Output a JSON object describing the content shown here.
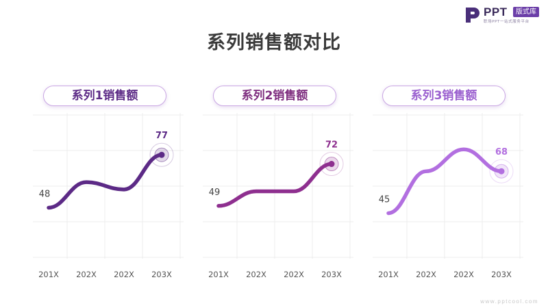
{
  "logo": {
    "text": "PPT",
    "badge": "版式库",
    "tagline": "职场PPT一站式服务平台"
  },
  "title": "系列销售额对比",
  "footer": "www.pptcool.com",
  "colors": {
    "series1": "#5c2a86",
    "series2": "#8e2f8f",
    "series3": "#b26fe0",
    "grid": "#ececec"
  },
  "chart_data": [
    {
      "type": "line",
      "title": "系列1销售额",
      "categories": [
        "201X",
        "202X",
        "202X",
        "203X"
      ],
      "series": [
        {
          "name": "系列1销售额",
          "values": [
            48,
            62,
            58,
            77
          ]
        }
      ],
      "labeled_points": [
        0,
        3
      ],
      "ylim": [
        20,
        100
      ],
      "grid": true,
      "smooth": true
    },
    {
      "type": "line",
      "title": "系列2销售额",
      "categories": [
        "201X",
        "202X",
        "202X",
        "203X"
      ],
      "series": [
        {
          "name": "系列2销售额",
          "values": [
            49,
            57,
            57,
            72
          ]
        }
      ],
      "labeled_points": [
        0,
        3
      ],
      "ylim": [
        20,
        100
      ],
      "grid": true,
      "smooth": true
    },
    {
      "type": "line",
      "title": "系列3销售额",
      "categories": [
        "201X",
        "202X",
        "202X",
        "203X"
      ],
      "series": [
        {
          "name": "系列3销售额",
          "values": [
            45,
            68,
            80,
            68
          ]
        }
      ],
      "labeled_points": [
        0,
        3
      ],
      "ylim": [
        20,
        100
      ],
      "grid": true,
      "smooth": true
    }
  ]
}
